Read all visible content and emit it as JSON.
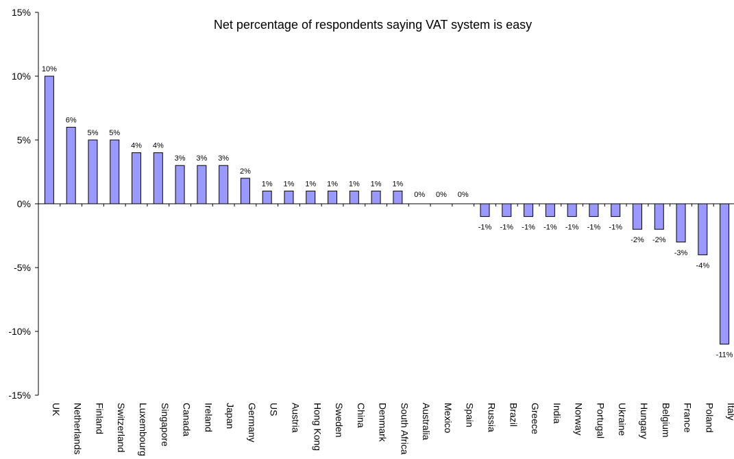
{
  "chart_data": {
    "type": "bar",
    "title": "Net percentage of respondents saying VAT system is easy",
    "xlabel": "",
    "ylabel": "",
    "ylim": [
      -15,
      15
    ],
    "yticks": [
      15,
      10,
      5,
      0,
      -5,
      -10,
      -15
    ],
    "ytick_labels": [
      "15%",
      "10%",
      "5%",
      "0%",
      "-5%",
      "-10%",
      "-15%"
    ],
    "grid": false,
    "legend": "none",
    "bar_color": "#9999ff",
    "categories": [
      "UK",
      "Netherlands",
      "Finland",
      "Switzerland",
      "Luxembourg",
      "Singapore",
      "Canada",
      "Ireland",
      "Japan",
      "Germany",
      "US",
      "Austria",
      "Hong Kong",
      "Sweden",
      "China",
      "Denmark",
      "South Africa",
      "Australia",
      "Mexico",
      "Spain",
      "Russia",
      "Brazil",
      "Greece",
      "India",
      "Norway",
      "Portugal",
      "Ukraine",
      "Hungary",
      "Belgium",
      "France",
      "Poland",
      "Italy"
    ],
    "values": [
      10,
      6,
      5,
      5,
      4,
      4,
      3,
      3,
      3,
      2,
      1,
      1,
      1,
      1,
      1,
      1,
      1,
      0,
      0,
      0,
      -1,
      -1,
      -1,
      -1,
      -1,
      -1,
      -1,
      -2,
      -2,
      -3,
      -4,
      -11
    ],
    "data_labels": [
      "10%",
      "6%",
      "5%",
      "5%",
      "4%",
      "4%",
      "3%",
      "3%",
      "3%",
      "2%",
      "1%",
      "1%",
      "1%",
      "1%",
      "1%",
      "1%",
      "1%",
      "0%",
      "0%",
      "0%",
      "-1%",
      "-1%",
      "-1%",
      "-1%",
      "-1%",
      "-1%",
      "-1%",
      "-2%",
      "-2%",
      "-3%",
      "-4%",
      "-11%"
    ]
  }
}
